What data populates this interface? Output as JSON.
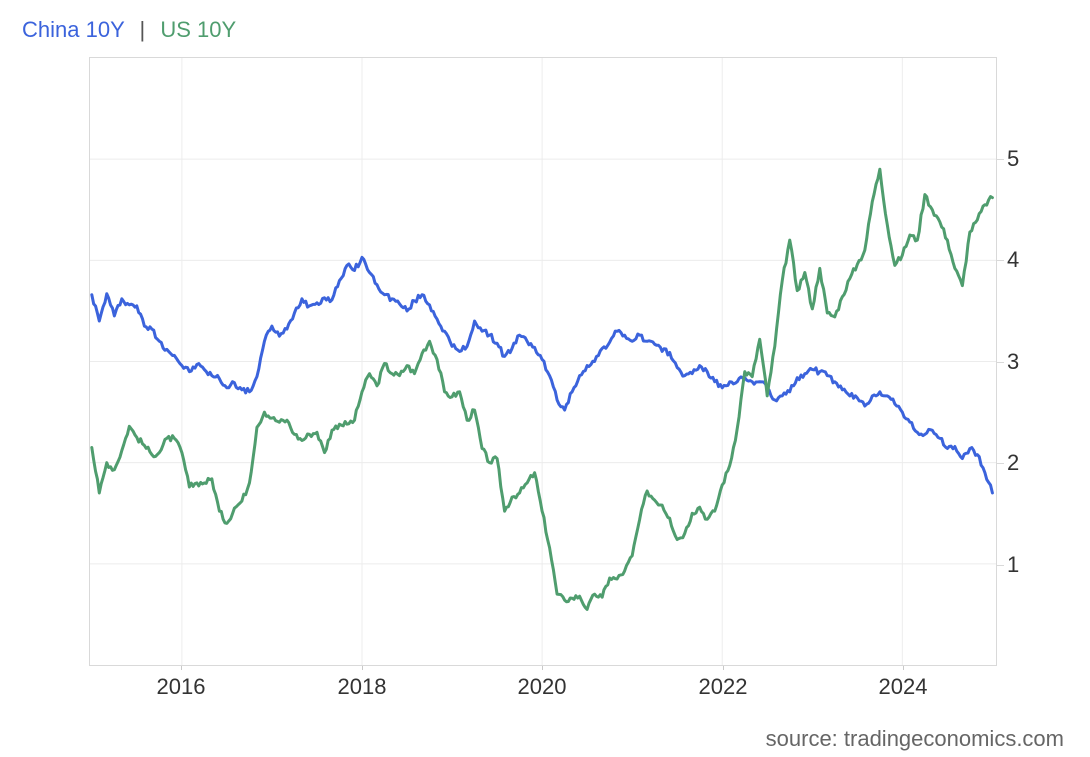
{
  "legend": {
    "items": [
      {
        "label": "China 10Y",
        "color": "#3b63dc"
      },
      {
        "label": "US 10Y",
        "color": "#4f9d6e"
      }
    ],
    "separator": "|"
  },
  "source": {
    "text": "source: tradingeconomics.com"
  },
  "colors": {
    "background": "#ffffff",
    "grid": "#ececec",
    "plot_border": "#d9d9d9",
    "axis_text": "#333333",
    "source_text": "#666666",
    "china_line": "#3b63dc",
    "us_line": "#4f9d6e"
  },
  "chart_data": {
    "type": "line",
    "title": "",
    "xlabel": "",
    "ylabel": "",
    "y_axis_side": "right",
    "grid": true,
    "legend_position": "top-left",
    "xlim": [
      2014.98,
      2025.04
    ],
    "ylim": [
      0,
      6
    ],
    "x_ticks": [
      2016,
      2018,
      2020,
      2022,
      2024
    ],
    "y_ticks": [
      1,
      2,
      3,
      4,
      5
    ],
    "x_unit": "decimal_year",
    "x_start_year": 2015.0,
    "x_step_years": 0.0833333,
    "x_end_year": 2025.0,
    "frequency": "monthly",
    "series": [
      {
        "name": "China 10Y",
        "color": "#3b63dc",
        "values": [
          3.66,
          3.4,
          3.67,
          3.45,
          3.62,
          3.56,
          3.55,
          3.35,
          3.32,
          3.2,
          3.12,
          3.06,
          2.96,
          2.9,
          2.97,
          2.92,
          2.86,
          2.83,
          2.74,
          2.79,
          2.72,
          2.7,
          2.85,
          3.2,
          3.35,
          3.25,
          3.32,
          3.48,
          3.62,
          3.55,
          3.58,
          3.63,
          3.61,
          3.8,
          3.95,
          3.9,
          4.03,
          3.88,
          3.76,
          3.66,
          3.62,
          3.57,
          3.5,
          3.6,
          3.66,
          3.56,
          3.42,
          3.3,
          3.15,
          3.1,
          3.15,
          3.4,
          3.3,
          3.26,
          3.18,
          3.05,
          3.13,
          3.26,
          3.2,
          3.14,
          3.02,
          2.86,
          2.62,
          2.52,
          2.7,
          2.86,
          2.96,
          3.0,
          3.13,
          3.19,
          3.3,
          3.26,
          3.2,
          3.26,
          3.2,
          3.17,
          3.1,
          3.09,
          2.94,
          2.86,
          2.88,
          2.96,
          2.9,
          2.8,
          2.74,
          2.8,
          2.8,
          2.84,
          2.8,
          2.8,
          2.74,
          2.62,
          2.66,
          2.7,
          2.84,
          2.88,
          2.92,
          2.9,
          2.86,
          2.8,
          2.72,
          2.66,
          2.64,
          2.56,
          2.66,
          2.7,
          2.66,
          2.58,
          2.5,
          2.4,
          2.3,
          2.28,
          2.32,
          2.24,
          2.14,
          2.16,
          2.04,
          2.14,
          2.08,
          1.9,
          1.7
        ]
      },
      {
        "name": "US 10Y",
        "color": "#4f9d6e",
        "values": [
          2.15,
          1.7,
          2.0,
          1.93,
          2.12,
          2.36,
          2.25,
          2.17,
          2.08,
          2.1,
          2.24,
          2.24,
          2.1,
          1.76,
          1.8,
          1.8,
          1.84,
          1.52,
          1.4,
          1.55,
          1.62,
          1.8,
          2.35,
          2.5,
          2.44,
          2.4,
          2.42,
          2.28,
          2.22,
          2.28,
          2.3,
          2.1,
          2.32,
          2.38,
          2.38,
          2.42,
          2.7,
          2.88,
          2.76,
          2.98,
          2.88,
          2.86,
          2.96,
          2.88,
          3.08,
          3.2,
          3.02,
          2.7,
          2.65,
          2.7,
          2.42,
          2.52,
          2.14,
          2.0,
          2.04,
          1.52,
          1.66,
          1.7,
          1.8,
          1.9,
          1.52,
          1.16,
          0.7,
          0.64,
          0.66,
          0.68,
          0.55,
          0.7,
          0.67,
          0.86,
          0.85,
          0.93,
          1.08,
          1.44,
          1.72,
          1.63,
          1.58,
          1.45,
          1.24,
          1.3,
          1.5,
          1.56,
          1.44,
          1.52,
          1.78,
          1.97,
          2.34,
          2.9,
          2.85,
          3.22,
          2.66,
          3.15,
          3.8,
          4.2,
          3.7,
          3.88,
          3.52,
          3.92,
          3.48,
          3.44,
          3.64,
          3.82,
          3.96,
          4.1,
          4.58,
          4.9,
          4.35,
          3.95,
          4.05,
          4.25,
          4.2,
          4.65,
          4.5,
          4.38,
          4.2,
          3.92,
          3.75,
          4.28,
          4.4,
          4.55,
          4.62
        ]
      }
    ]
  }
}
